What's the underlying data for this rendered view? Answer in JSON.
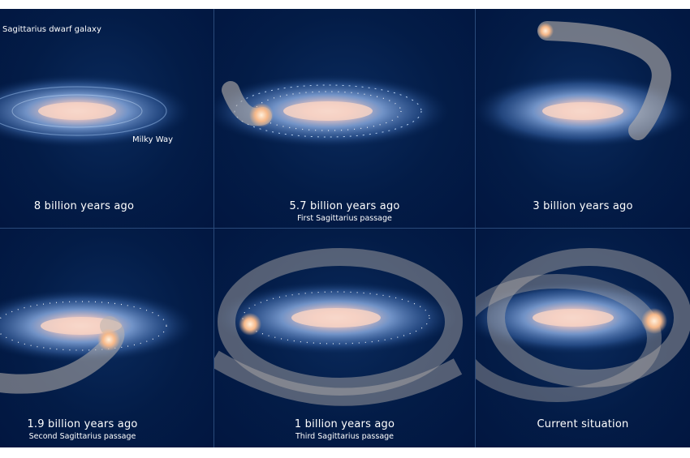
{
  "panels": [
    {
      "caption": "8 billion years ago",
      "subcaption": "",
      "labels": {
        "dwarf": "Sagittarius dwarf galaxy",
        "milky_way": "Milky Way"
      }
    },
    {
      "caption": "5.7 billion years ago",
      "subcaption": "First Sagittarius passage"
    },
    {
      "caption": "3 billion years ago",
      "subcaption": ""
    },
    {
      "caption": "1.9 billion years ago",
      "subcaption": "Second Sagittarius passage"
    },
    {
      "caption": "1 billion years ago",
      "subcaption": "Third Sagittarius passage"
    },
    {
      "caption": "Current situation",
      "subcaption": ""
    }
  ],
  "colors": {
    "background": "#02183f",
    "galaxy_core": "#f6d2c4",
    "dwarf": "#f7b98a",
    "stream": "#b9b2ad"
  }
}
